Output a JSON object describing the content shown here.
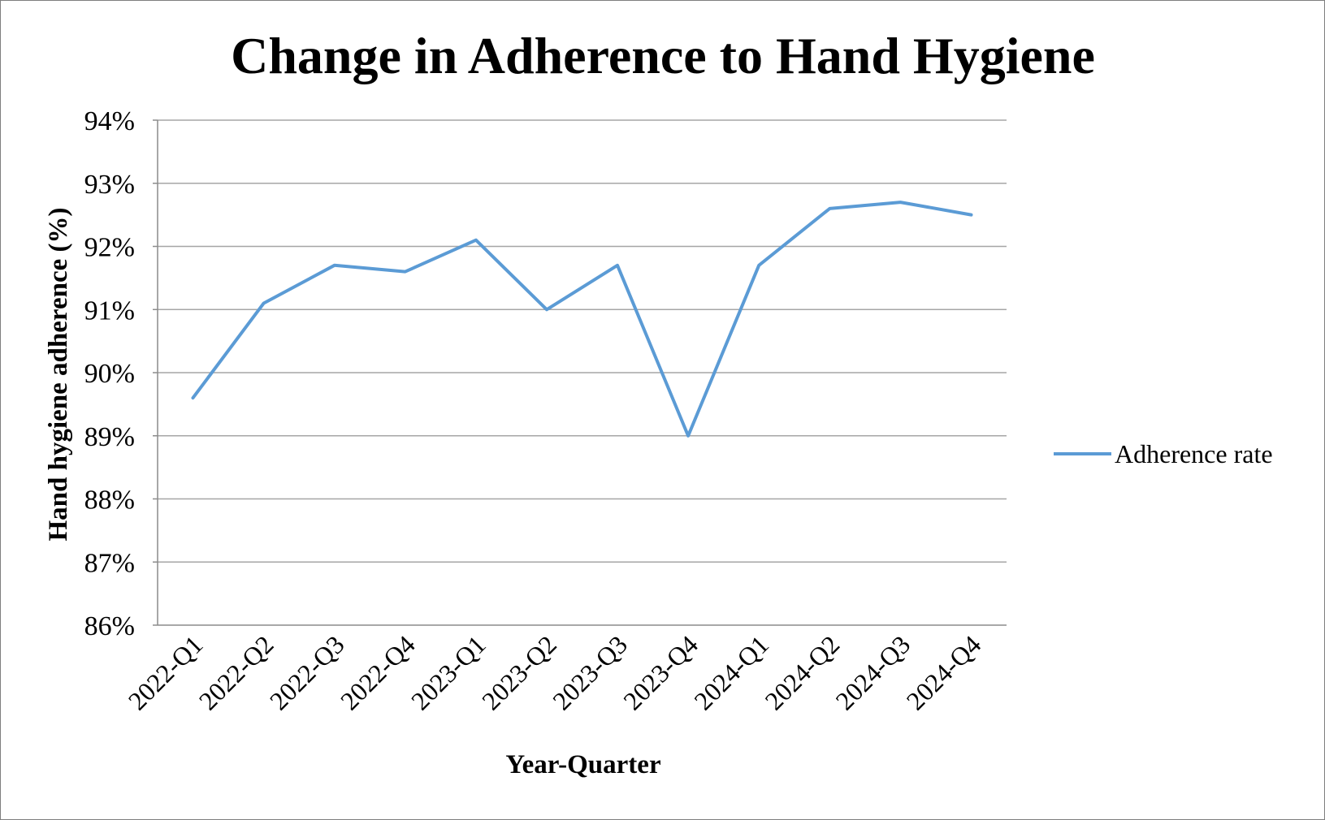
{
  "chart_data": {
    "type": "line",
    "title": "Change in Adherence to Hand Hygiene",
    "xlabel": "Year-Quarter",
    "ylabel": "Hand hygiene adherence  (%)",
    "categories": [
      "2022-Q1",
      "2022-Q2",
      "2022-Q3",
      "2022-Q4",
      "2023-Q1",
      "2023-Q2",
      "2023-Q3",
      "2023-Q4",
      "2024-Q1",
      "2024-Q2",
      "2024-Q3",
      "2024-Q4"
    ],
    "series": [
      {
        "name": "Adherence rate",
        "color": "#5b9bd5",
        "values": [
          89.6,
          91.1,
          91.7,
          91.6,
          92.1,
          91.0,
          91.7,
          89.0,
          91.7,
          92.6,
          92.7,
          92.5
        ]
      }
    ],
    "ylim": [
      86,
      94
    ],
    "yticks": [
      "86%",
      "87%",
      "88%",
      "89%",
      "90%",
      "91%",
      "92%",
      "93%",
      "94%"
    ],
    "grid": true,
    "legend": "right"
  }
}
